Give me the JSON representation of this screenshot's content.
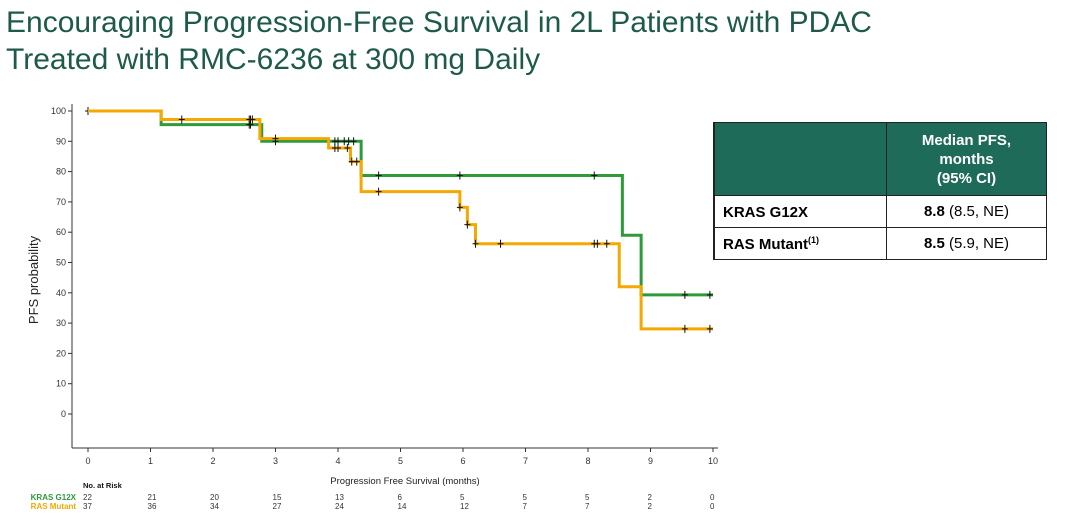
{
  "title_line1": "Encouraging Progression-Free Survival in 2L Patients with PDAC",
  "title_line2": "Treated with RMC-6236 at 300 mg Daily",
  "table": {
    "header": [
      "Median PFS,",
      "months",
      "(95% CI)"
    ],
    "rows": [
      {
        "label": "KRAS G12X",
        "sup": "",
        "median": "8.8",
        "ci": " (8.5, NE)"
      },
      {
        "label": "RAS Mutant",
        "sup": "(1)",
        "median": "8.5",
        "ci": " (5.9, NE)"
      }
    ]
  },
  "chart_data": {
    "type": "line",
    "subtype": "kaplan-meier step",
    "xlabel": "Progression Free Survival (months)",
    "ylabel": "PFS probability",
    "xlim": [
      0,
      10
    ],
    "ylim": [
      0,
      100
    ],
    "xticks": [
      0,
      1,
      2,
      3,
      4,
      5,
      6,
      7,
      8,
      9,
      10
    ],
    "yticks": [
      0,
      10,
      20,
      30,
      40,
      50,
      60,
      70,
      80,
      90,
      100
    ],
    "series": [
      {
        "name": "KRAS G12X",
        "color": "#2e9a3a",
        "steps": [
          [
            0,
            100
          ],
          [
            1.17,
            95.5
          ],
          [
            2.78,
            90
          ],
          [
            4.37,
            78.7
          ],
          [
            8.55,
            59
          ],
          [
            8.85,
            39.3
          ],
          [
            10,
            39.3
          ]
        ],
        "censors": [
          [
            0,
            100
          ],
          [
            2.58,
            95.5
          ],
          [
            2.6,
            95.5
          ],
          [
            3.0,
            90
          ],
          [
            3.95,
            90
          ],
          [
            4.0,
            90
          ],
          [
            4.1,
            90
          ],
          [
            4.17,
            90
          ],
          [
            4.25,
            90
          ],
          [
            4.65,
            78.7
          ],
          [
            5.95,
            78.7
          ],
          [
            8.1,
            78.7
          ],
          [
            9.55,
            39.3
          ],
          [
            9.95,
            39.3
          ]
        ]
      },
      {
        "name": "RAS Mutant",
        "color": "#f5a800",
        "steps": [
          [
            0,
            100
          ],
          [
            1.17,
            97.2
          ],
          [
            2.75,
            90.9
          ],
          [
            3.85,
            87.8
          ],
          [
            4.2,
            83.3
          ],
          [
            4.37,
            73.4
          ],
          [
            5.95,
            68.2
          ],
          [
            6.07,
            62.5
          ],
          [
            6.2,
            56.2
          ],
          [
            8.5,
            42
          ],
          [
            8.85,
            28.1
          ],
          [
            10,
            28.1
          ]
        ],
        "censors": [
          [
            1.5,
            97.2
          ],
          [
            2.58,
            97.2
          ],
          [
            2.6,
            97.2
          ],
          [
            2.63,
            97.2
          ],
          [
            3.0,
            90.9
          ],
          [
            3.95,
            87.8
          ],
          [
            4.0,
            87.8
          ],
          [
            4.15,
            87.8
          ],
          [
            4.22,
            83.3
          ],
          [
            4.3,
            83.3
          ],
          [
            4.65,
            73.4
          ],
          [
            5.95,
            68.2
          ],
          [
            6.07,
            62.5
          ],
          [
            6.2,
            56.2
          ],
          [
            6.6,
            56.2
          ],
          [
            8.1,
            56.2
          ],
          [
            8.15,
            56.2
          ],
          [
            8.3,
            56.2
          ],
          [
            9.55,
            28.1
          ],
          [
            9.95,
            28.1
          ]
        ]
      }
    ],
    "risk_table": {
      "title": "No. at Risk",
      "rows": [
        {
          "name": "KRAS G12X",
          "color": "#2e9a3a",
          "values": [
            22,
            21,
            20,
            15,
            13,
            6,
            5,
            5,
            5,
            2,
            0
          ]
        },
        {
          "name": "RAS Mutant",
          "color": "#f5a800",
          "values": [
            37,
            36,
            34,
            27,
            24,
            14,
            12,
            7,
            7,
            2,
            0
          ]
        }
      ]
    }
  }
}
